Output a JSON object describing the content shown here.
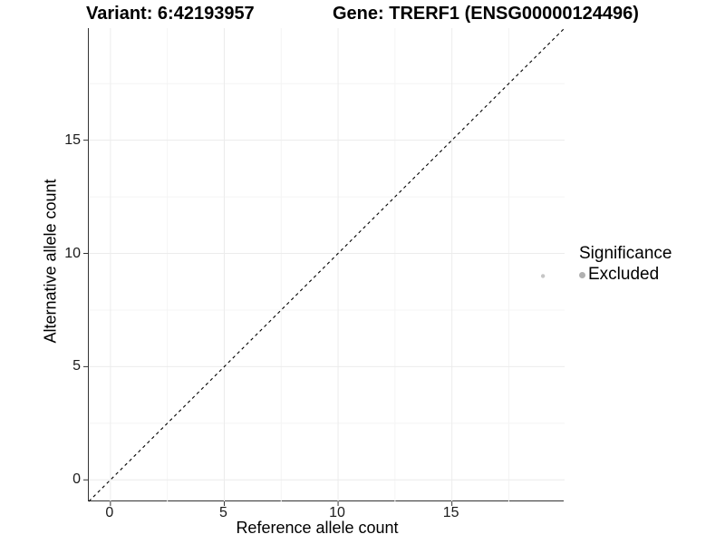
{
  "header": {
    "variant_title": "Variant: 6:42193957",
    "gene_title": "Gene: TRERF1 (ENSG00000124496)"
  },
  "axes": {
    "x_label": "Reference allele count",
    "y_label": "Alternative allele count"
  },
  "legend": {
    "title": "Significance",
    "items": [
      {
        "label": "Excluded",
        "color": "#b0b0b0"
      }
    ]
  },
  "chart_data": {
    "type": "scatter",
    "title": "Variant: 6:42193957 — Gene: TRERF1 (ENSG00000124496)",
    "xlabel": "Reference allele count",
    "ylabel": "Alternative allele count",
    "xlim": [
      -0.95,
      19.95
    ],
    "ylim": [
      -0.95,
      19.95
    ],
    "x_ticks": {
      "values": [
        0,
        5,
        10,
        15
      ],
      "labels": [
        "0",
        "5",
        "10",
        "15"
      ]
    },
    "y_ticks": {
      "values": [
        0,
        5,
        10,
        15
      ],
      "labels": [
        "0",
        "5",
        "10",
        "15"
      ]
    },
    "minor_grid": [
      2.5,
      7.5,
      12.5,
      17.5
    ],
    "grid": "major+minor",
    "legend_position": "right",
    "series": [
      {
        "name": "Excluded",
        "points": [
          {
            "x": 19,
            "y": 9
          }
        ],
        "color": "#c6c6c6",
        "point_radius": 2.2
      }
    ],
    "reference_line": {
      "type": "identity",
      "slope": 1,
      "intercept": 0,
      "style": "dashed",
      "color": "#000000"
    },
    "colors": {
      "grid_major": "#ececec",
      "grid_minor": "#f4f4f4",
      "axis_line": "#333333",
      "tick_mark": "#333333",
      "point": "#c6c6c6",
      "legend_key": "#b0b0b0"
    }
  }
}
